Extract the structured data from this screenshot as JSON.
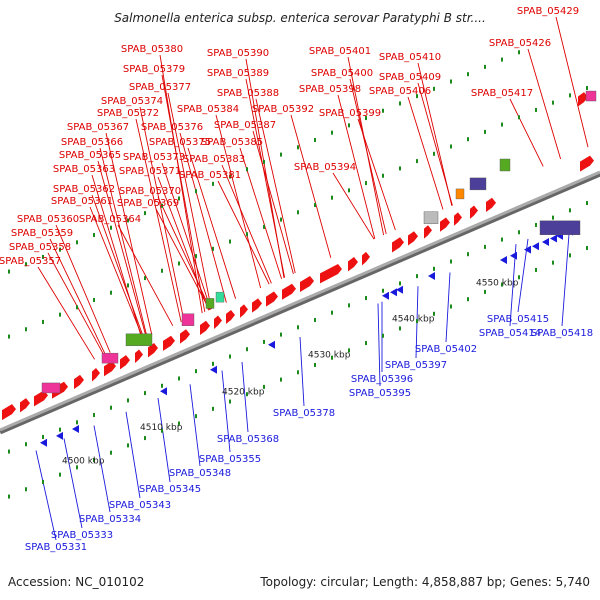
{
  "title": "Salmonella enterica subsp. enterica serovar Paratyphi B str....",
  "footer": {
    "accession": "Accession: NC_010102",
    "summary": "Topology: circular; Length: 4,858,887 bp; Genes: 5,740"
  },
  "colors": {
    "forward_gene": "#ee1111",
    "reverse_gene": "#1a1add",
    "label_top": "#dd0000",
    "label_bottom": "#1a1add",
    "rna_green": "#55aa22",
    "pink": "#ee3399",
    "purple": "#4b3f99",
    "grey_feature": "#bbbbbb",
    "orange": "#ff8800",
    "backbone": "#999999"
  },
  "ticks": [
    "4500 kbp",
    "4510 kbp",
    "4520 kbp",
    "4530 kbp",
    "4540 kbp",
    "4550 kbp"
  ],
  "top_labels": [
    "SPAB_05429",
    "SPAB_05426",
    "SPAB_05417",
    "SPAB_05410",
    "SPAB_05409",
    "SPAB_05406",
    "SPAB_05401",
    "SPAB_05400",
    "SPAB_05398",
    "SPAB_05399",
    "SPAB_05390",
    "SPAB_05389",
    "SPAB_05388",
    "SPAB_05392",
    "SPAB_05387",
    "SPAB_05394",
    "SPAB_05385",
    "SPAB_05380",
    "SPAB_05379",
    "SPAB_05377",
    "SPAB_05374",
    "SPAB_05384",
    "SPAB_05372",
    "SPAB_05367",
    "SPAB_05376",
    "SPAB_05366",
    "SPAB_05375",
    "SPAB_05365",
    "SPAB_05373",
    "SPAB_05383",
    "SPAB_05363",
    "SPAB_05371",
    "SPAB_05381",
    "SPAB_05362",
    "SPAB_05370",
    "SPAB_05361",
    "SPAB_05369",
    "SPAB_05360",
    "SPAB_05364",
    "SPAB_05359",
    "SPAB_05358",
    "SPAB_05357"
  ],
  "bottom_labels": [
    "SPAB_05415",
    "SPAB_05418",
    "SPAB_05414",
    "SPAB_05402",
    "SPAB_05397",
    "SPAB_05396",
    "SPAB_05395",
    "SPAB_05378",
    "SPAB_05368",
    "SPAB_05355",
    "SPAB_05348",
    "SPAB_05345",
    "SPAB_05343",
    "SPAB_05334",
    "SPAB_05333",
    "SPAB_05331"
  ]
}
